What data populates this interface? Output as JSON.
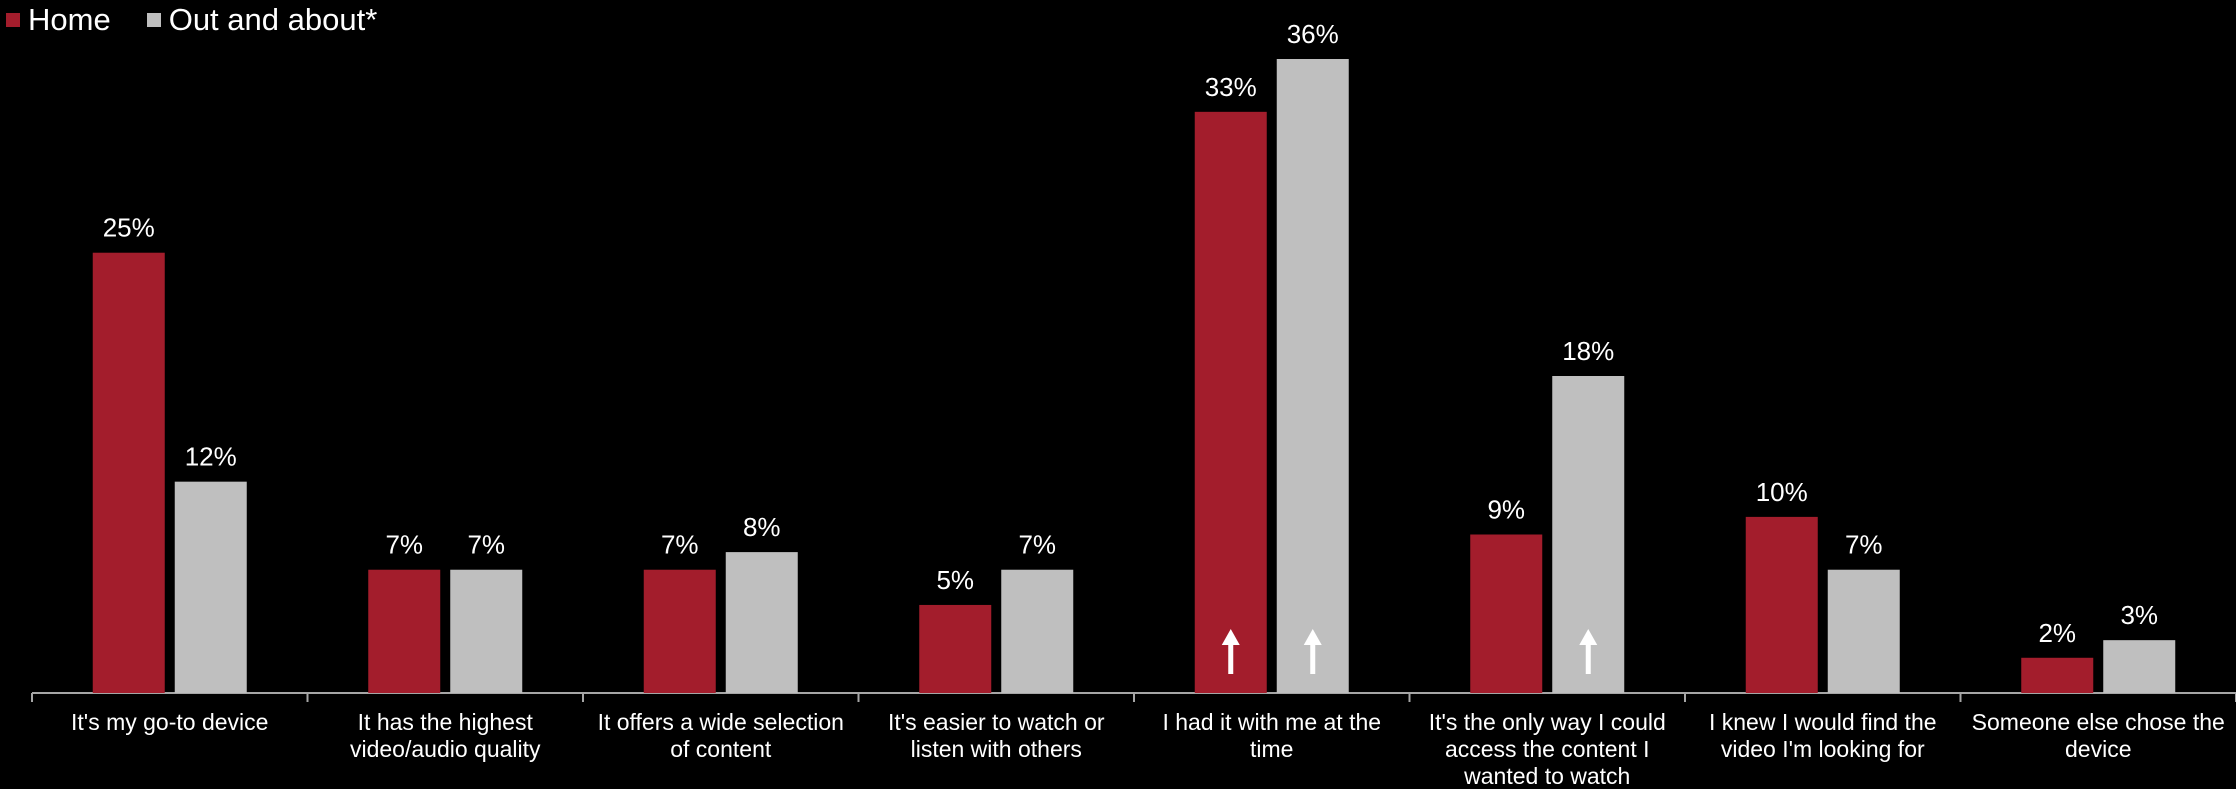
{
  "chart_data": {
    "type": "bar",
    "categories": [
      [
        "It's my go-to device"
      ],
      [
        "It has the highest",
        "video/audio quality"
      ],
      [
        "It offers a wide selection",
        "of content"
      ],
      [
        "It's easier to watch or",
        "listen with others"
      ],
      [
        "I had it with me at the",
        "time"
      ],
      [
        "It's the only way I could",
        "access the content I",
        "wanted to watch"
      ],
      [
        "I knew I would find the",
        "video I'm looking for"
      ],
      [
        "Someone else chose the",
        "device"
      ]
    ],
    "series": [
      {
        "name": "Home",
        "color": "#a31d2c",
        "values": [
          25,
          7,
          7,
          5,
          33,
          9,
          10,
          2
        ],
        "labels": [
          "25%",
          "7%",
          "7%",
          "5%",
          "33%",
          "9%",
          "10%",
          "2%"
        ],
        "up_arrows": [
          false,
          false,
          false,
          false,
          true,
          false,
          false,
          false
        ]
      },
      {
        "name": "Out and about*",
        "color": "#bfbfbf",
        "values": [
          12,
          7,
          8,
          7,
          36,
          18,
          7,
          3
        ],
        "labels": [
          "12%",
          "7%",
          "8%",
          "7%",
          "36%",
          "18%",
          "7%",
          "3%"
        ],
        "up_arrows": [
          false,
          false,
          false,
          false,
          true,
          true,
          false,
          false
        ]
      }
    ],
    "title": "",
    "xlabel": "",
    "ylabel": "",
    "ylim": [
      0,
      36
    ],
    "grid": false,
    "legend_position": "top-left",
    "axis_color": "#a6a6a6"
  }
}
